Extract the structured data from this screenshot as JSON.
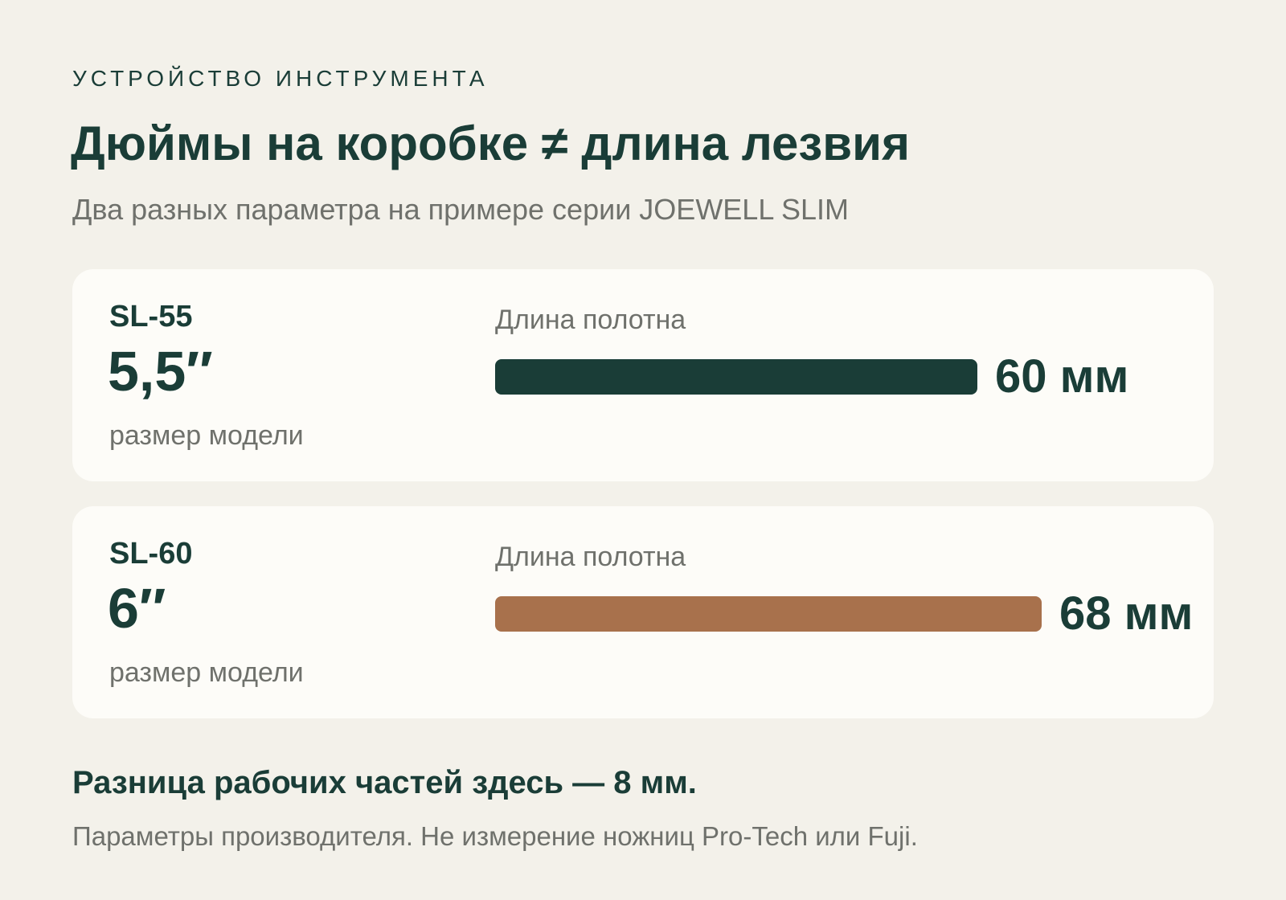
{
  "eyebrow": "УСТРОЙСТВО ИНСТРУМЕНТА",
  "title": "Дюймы на коробке ≠ длина лезвия",
  "subtitle": "Два разных параметра на примере серии JOEWELL SLIM",
  "colors": {
    "background": "#f3f1ea",
    "card": "#fdfcf8",
    "ink": "#1a3d37",
    "muted": "#6f716c",
    "bar_sl55": "#1a3d37",
    "bar_sl60": "#a8714c"
  },
  "chart_data": {
    "type": "bar",
    "orientation": "horizontal",
    "categories": [
      "SL-55",
      "SL-60"
    ],
    "model_sizes": [
      "5,5″",
      "6″"
    ],
    "model_size_caption": "размер модели",
    "metric_label": "Длина полотна",
    "values": [
      60,
      68
    ],
    "value_labels": [
      "60 мм",
      "68 мм"
    ],
    "unit": "мм",
    "bar_colors": [
      "#1a3d37",
      "#a8714c"
    ],
    "xlim": [
      0,
      68
    ]
  },
  "note": "Разница рабочих частей здесь — 8 мм.",
  "footnote": "Параметры производителя. Не измерение ножниц Pro-Tech или Fuji."
}
